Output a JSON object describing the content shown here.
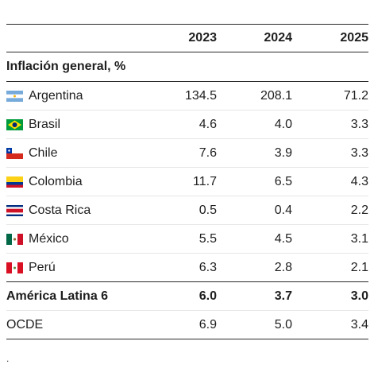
{
  "header": {
    "col_2023": "2023",
    "col_2024": "2024",
    "col_2025": "2025"
  },
  "section_title": "Inflación general, %",
  "rows": [
    {
      "country": "Argentina",
      "flag": "argentina-flag-icon",
      "v2023": "134.5",
      "v2024": "208.1",
      "v2025": "71.2"
    },
    {
      "country": "Brasil",
      "flag": "brazil-flag-icon",
      "v2023": "4.6",
      "v2024": "4.0",
      "v2025": "3.3"
    },
    {
      "country": "Chile",
      "flag": "chile-flag-icon",
      "v2023": "7.6",
      "v2024": "3.9",
      "v2025": "3.3"
    },
    {
      "country": "Colombia",
      "flag": "colombia-flag-icon",
      "v2023": "11.7",
      "v2024": "6.5",
      "v2025": "4.3"
    },
    {
      "country": "Costa Rica",
      "flag": "costa-rica-flag-icon",
      "v2023": "0.5",
      "v2024": "0.4",
      "v2025": "2.2"
    },
    {
      "country": "México",
      "flag": "mexico-flag-icon",
      "v2023": "5.5",
      "v2024": "4.5",
      "v2025": "3.1"
    },
    {
      "country": "Perú",
      "flag": "peru-flag-icon",
      "v2023": "6.3",
      "v2024": "2.8",
      "v2025": "2.1"
    }
  ],
  "aggregate": {
    "label": "América Latina 6",
    "v2023": "6.0",
    "v2024": "3.7",
    "v2025": "3.0"
  },
  "oecd": {
    "label": "OCDE",
    "v2023": "6.9",
    "v2024": "5.0",
    "v2025": "3.4"
  },
  "footnote": ".",
  "colors": {
    "rule_dark": "#2a2a2a",
    "rule_light": "#e6e6e6",
    "text": "#1e1e1e"
  }
}
